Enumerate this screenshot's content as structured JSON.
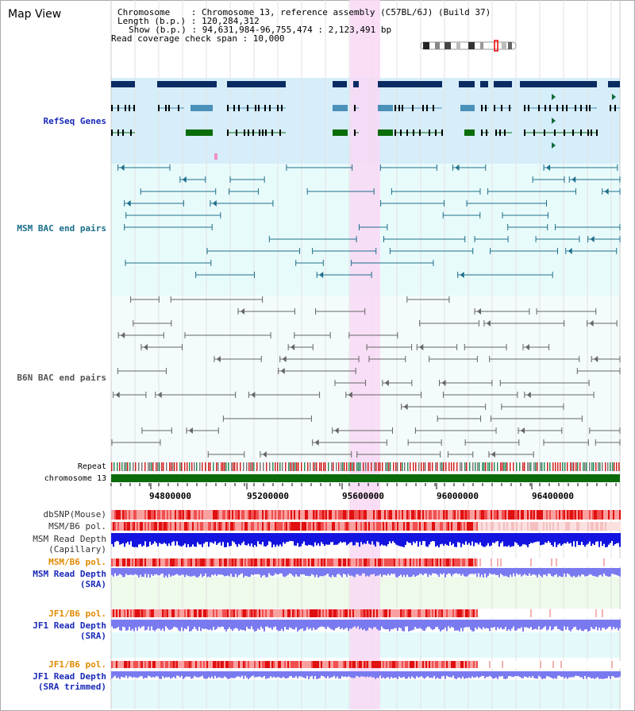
{
  "title": "Map View",
  "info": {
    "line1": "Chromosome    : Chromosome 13, reference assembly (C57BL/6J) (Build 37)",
    "line2": "Length (b.p.) : 120,284,312",
    "line3": "Show (b.p.) : 94,631,984-96,755,474 : 2,123,491 bp",
    "line4": "Read coverage check span : 10,000"
  },
  "tracks": {
    "refseq": "RefSeq Genes",
    "msm_bac": "MSM BAC end pairs",
    "b6n_bac": "B6N BAC end pairs",
    "repeat": "Repeat",
    "chromosome": "chromosome 13",
    "dbsnp": "dbSNP(Mouse)",
    "msm_b6_pol": "MSM/B6 pol.",
    "msm_rd_cap_1": "MSM Read Depth",
    "msm_rd_cap_2": "(Capillary)",
    "msm_b6_pol2": "MSM/B6 pol.",
    "msm_rd_sra_1": "MSM Read Depth",
    "msm_rd_sra_2": "(SRA)",
    "jf1_b6_pol": "JF1/B6 pol.",
    "jf1_rd_sra_1": "JF1 Read Depth",
    "jf1_rd_sra_2": "(SRA)",
    "jf1_b6_pol2": "JF1/B6 pol.",
    "jf1_rd_trim_1": "JF1 Read Depth",
    "jf1_rd_trim_2": "(SRA trimmed)"
  },
  "axis_ticks": [
    "94800000",
    "95200000",
    "95600000",
    "96000000",
    "96400000"
  ],
  "colors": {
    "refseq_bg": "#d6eef9",
    "bac_bg": "#e8fbfb",
    "highlight": "#f8d8f4",
    "gene_dark": "#0b2b63",
    "gene_blue": "#4a90b8",
    "gene_green": "#0a6d0a",
    "msm_bac": "#1f6f8b",
    "b6n_bac": "#666666",
    "chromosome": "#0b6b0b",
    "label_blue": "#1a2ab8",
    "label_teal": "#1a6d8a",
    "label_orange": "#e08a00",
    "depth_dark": "#1414e0",
    "depth_light": "#7a7af0"
  }
}
